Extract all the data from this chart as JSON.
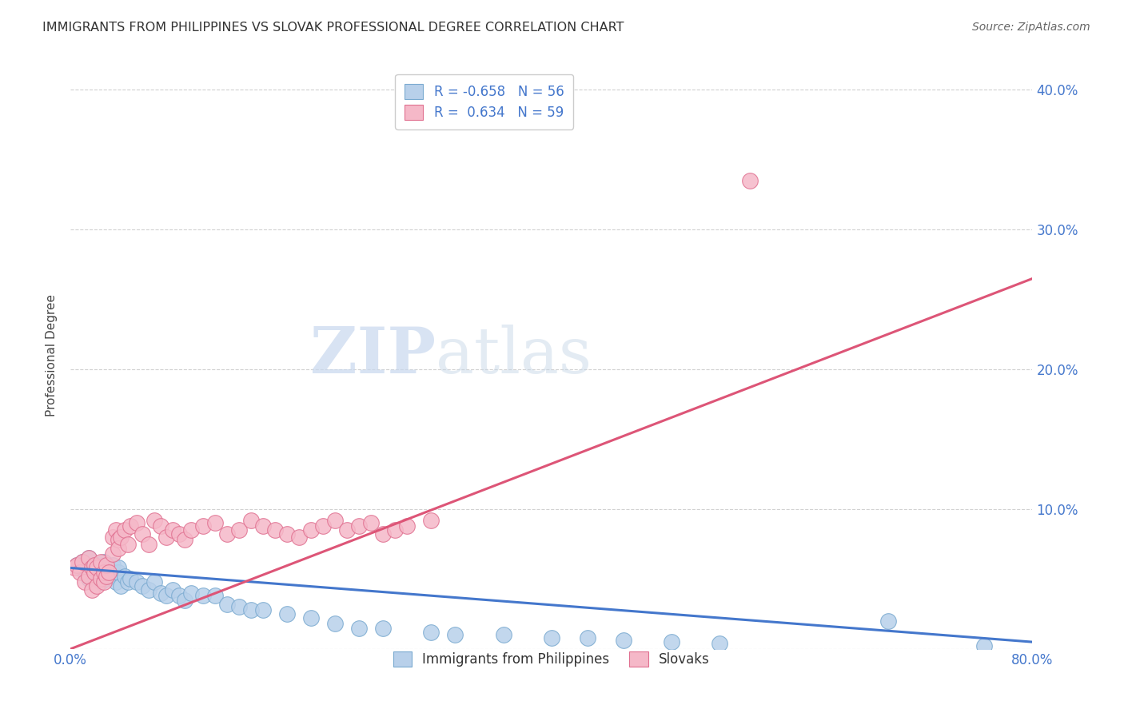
{
  "title": "IMMIGRANTS FROM PHILIPPINES VS SLOVAK PROFESSIONAL DEGREE CORRELATION CHART",
  "source": "Source: ZipAtlas.com",
  "ylabel": "Professional Degree",
  "xlim": [
    0,
    0.8
  ],
  "ylim": [
    0,
    0.42
  ],
  "xticks": [
    0.0,
    0.1,
    0.2,
    0.3,
    0.4,
    0.5,
    0.6,
    0.7,
    0.8
  ],
  "yticks": [
    0.0,
    0.1,
    0.2,
    0.3,
    0.4
  ],
  "ytick_labels": [
    "",
    "10.0%",
    "20.0%",
    "30.0%",
    "40.0%"
  ],
  "xtick_labels": [
    "0.0%",
    "",
    "",
    "",
    "",
    "",
    "",
    "",
    "80.0%"
  ],
  "blue_color": "#b8d0ea",
  "blue_edge": "#7aaad0",
  "pink_color": "#f5b8c8",
  "pink_edge": "#e07090",
  "blue_line_color": "#4477cc",
  "pink_line_color": "#dd5577",
  "legend_blue_label": "R = -0.658   N = 56",
  "legend_pink_label": "R =  0.634   N = 59",
  "legend_series1": "Immigrants from Philippines",
  "legend_series2": "Slovaks",
  "watermark_zip": "ZIP",
  "watermark_atlas": "atlas",
  "blue_x": [
    0.005,
    0.008,
    0.01,
    0.012,
    0.015,
    0.015,
    0.018,
    0.02,
    0.02,
    0.022,
    0.025,
    0.025,
    0.028,
    0.03,
    0.03,
    0.032,
    0.035,
    0.035,
    0.038,
    0.04,
    0.04,
    0.042,
    0.045,
    0.048,
    0.05,
    0.055,
    0.06,
    0.065,
    0.07,
    0.075,
    0.08,
    0.085,
    0.09,
    0.095,
    0.1,
    0.11,
    0.12,
    0.13,
    0.14,
    0.15,
    0.16,
    0.18,
    0.2,
    0.22,
    0.24,
    0.26,
    0.3,
    0.32,
    0.36,
    0.4,
    0.43,
    0.46,
    0.5,
    0.54,
    0.68,
    0.76
  ],
  "blue_y": [
    0.06,
    0.058,
    0.062,
    0.055,
    0.065,
    0.05,
    0.058,
    0.052,
    0.06,
    0.055,
    0.06,
    0.048,
    0.062,
    0.05,
    0.058,
    0.052,
    0.055,
    0.06,
    0.048,
    0.055,
    0.058,
    0.045,
    0.052,
    0.048,
    0.05,
    0.048,
    0.045,
    0.042,
    0.048,
    0.04,
    0.038,
    0.042,
    0.038,
    0.035,
    0.04,
    0.038,
    0.038,
    0.032,
    0.03,
    0.028,
    0.028,
    0.025,
    0.022,
    0.018,
    0.015,
    0.015,
    0.012,
    0.01,
    0.01,
    0.008,
    0.008,
    0.006,
    0.005,
    0.004,
    0.02,
    0.002
  ],
  "pink_x": [
    0.003,
    0.005,
    0.008,
    0.01,
    0.012,
    0.015,
    0.015,
    0.018,
    0.018,
    0.02,
    0.02,
    0.022,
    0.022,
    0.025,
    0.025,
    0.028,
    0.028,
    0.03,
    0.03,
    0.032,
    0.035,
    0.035,
    0.038,
    0.04,
    0.04,
    0.042,
    0.045,
    0.048,
    0.05,
    0.055,
    0.06,
    0.065,
    0.07,
    0.075,
    0.08,
    0.085,
    0.09,
    0.095,
    0.1,
    0.11,
    0.12,
    0.13,
    0.14,
    0.15,
    0.16,
    0.17,
    0.18,
    0.19,
    0.2,
    0.21,
    0.22,
    0.23,
    0.24,
    0.25,
    0.26,
    0.27,
    0.28,
    0.3,
    0.565
  ],
  "pink_y": [
    0.058,
    0.06,
    0.055,
    0.062,
    0.048,
    0.052,
    0.065,
    0.058,
    0.042,
    0.055,
    0.06,
    0.045,
    0.058,
    0.05,
    0.062,
    0.048,
    0.055,
    0.052,
    0.06,
    0.055,
    0.08,
    0.068,
    0.085,
    0.078,
    0.072,
    0.08,
    0.085,
    0.075,
    0.088,
    0.09,
    0.082,
    0.075,
    0.092,
    0.088,
    0.08,
    0.085,
    0.082,
    0.078,
    0.085,
    0.088,
    0.09,
    0.082,
    0.085,
    0.092,
    0.088,
    0.085,
    0.082,
    0.08,
    0.085,
    0.088,
    0.092,
    0.085,
    0.088,
    0.09,
    0.082,
    0.085,
    0.088,
    0.092,
    0.335
  ]
}
